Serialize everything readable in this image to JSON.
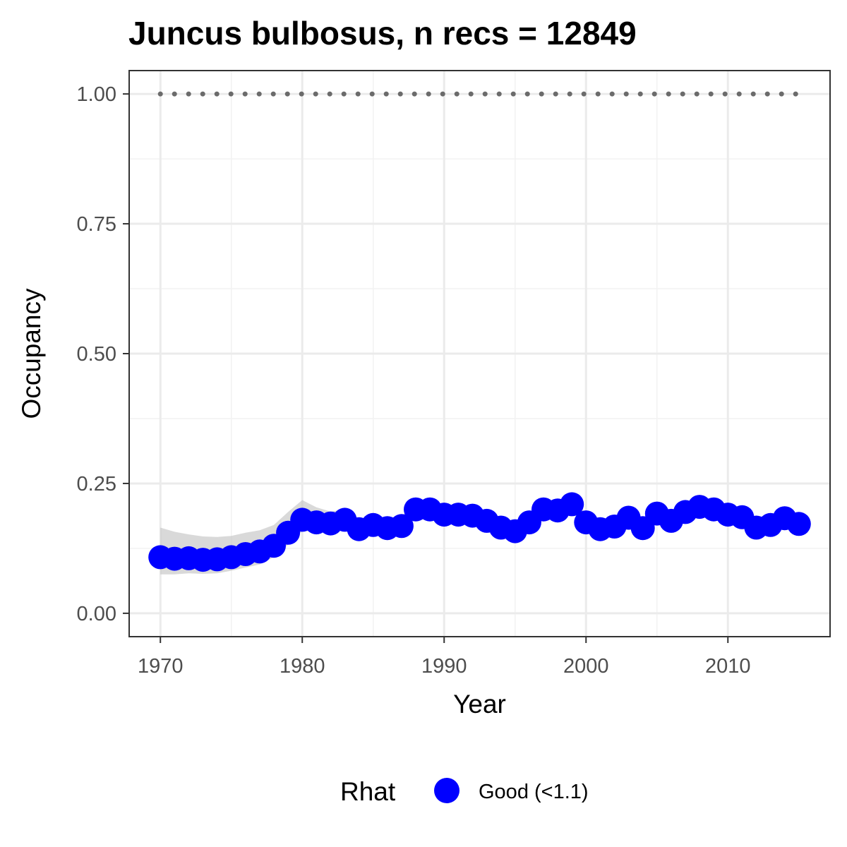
{
  "chart_data": {
    "type": "line",
    "title": "Juncus bulbosus, n recs = 12849",
    "xlabel": "Year",
    "ylabel": "Occupancy",
    "xlim": [
      1967.8,
      2017.2
    ],
    "ylim": [
      -0.045,
      1.045
    ],
    "x_ticks": [
      1970,
      1980,
      1990,
      2000,
      2010
    ],
    "x_tick_labels": [
      "1970",
      "1980",
      "1990",
      "2000",
      "2010"
    ],
    "y_ticks": [
      0,
      0.25,
      0.5,
      0.75,
      1.0
    ],
    "y_tick_labels": [
      "0.00",
      "0.25",
      "0.50",
      "0.75",
      "1.00"
    ],
    "grid": true,
    "legend": {
      "title": "Rhat",
      "position": "bottom",
      "entries": [
        {
          "label": "Good (<1.1)",
          "color": "#0000ff"
        }
      ]
    },
    "reference_line": {
      "y": 1.0,
      "style": "dotted",
      "color": "#6b6b6b"
    },
    "series": [
      {
        "name": "Good (<1.1)",
        "color": "#0000ff",
        "x": [
          1970,
          1971,
          1972,
          1973,
          1974,
          1975,
          1976,
          1977,
          1978,
          1979,
          1980,
          1981,
          1982,
          1983,
          1984,
          1985,
          1986,
          1987,
          1988,
          1989,
          1990,
          1991,
          1992,
          1993,
          1994,
          1995,
          1996,
          1997,
          1998,
          1999,
          2000,
          2001,
          2002,
          2003,
          2004,
          2005,
          2006,
          2007,
          2008,
          2009,
          2010,
          2011,
          2012,
          2013,
          2014,
          2015
        ],
        "y": [
          0.108,
          0.105,
          0.106,
          0.103,
          0.104,
          0.108,
          0.114,
          0.119,
          0.13,
          0.155,
          0.18,
          0.175,
          0.173,
          0.18,
          0.162,
          0.17,
          0.164,
          0.168,
          0.2,
          0.2,
          0.19,
          0.19,
          0.188,
          0.178,
          0.165,
          0.158,
          0.175,
          0.2,
          0.198,
          0.21,
          0.175,
          0.162,
          0.167,
          0.184,
          0.164,
          0.192,
          0.178,
          0.195,
          0.205,
          0.2,
          0.19,
          0.185,
          0.165,
          0.17,
          0.183,
          0.172
        ],
        "lower": [
          0.075,
          0.075,
          0.077,
          0.076,
          0.077,
          0.082,
          0.088,
          0.094,
          0.108,
          0.132,
          0.158,
          0.158,
          0.157,
          0.163,
          0.148,
          0.155,
          0.15,
          0.155,
          0.185,
          0.186,
          0.177,
          0.177,
          0.175,
          0.165,
          0.153,
          0.146,
          0.162,
          0.187,
          0.185,
          0.197,
          0.162,
          0.15,
          0.155,
          0.171,
          0.152,
          0.179,
          0.166,
          0.182,
          0.192,
          0.187,
          0.178,
          0.172,
          0.153,
          0.158,
          0.17,
          0.16
        ],
        "upper": [
          0.165,
          0.157,
          0.152,
          0.148,
          0.147,
          0.149,
          0.155,
          0.16,
          0.17,
          0.195,
          0.218,
          0.204,
          0.196,
          0.2,
          0.18,
          0.19,
          0.182,
          0.186,
          0.218,
          0.218,
          0.206,
          0.205,
          0.203,
          0.193,
          0.18,
          0.173,
          0.19,
          0.216,
          0.213,
          0.226,
          0.191,
          0.176,
          0.181,
          0.199,
          0.178,
          0.208,
          0.192,
          0.21,
          0.22,
          0.215,
          0.204,
          0.2,
          0.179,
          0.184,
          0.198,
          0.187
        ]
      }
    ]
  }
}
